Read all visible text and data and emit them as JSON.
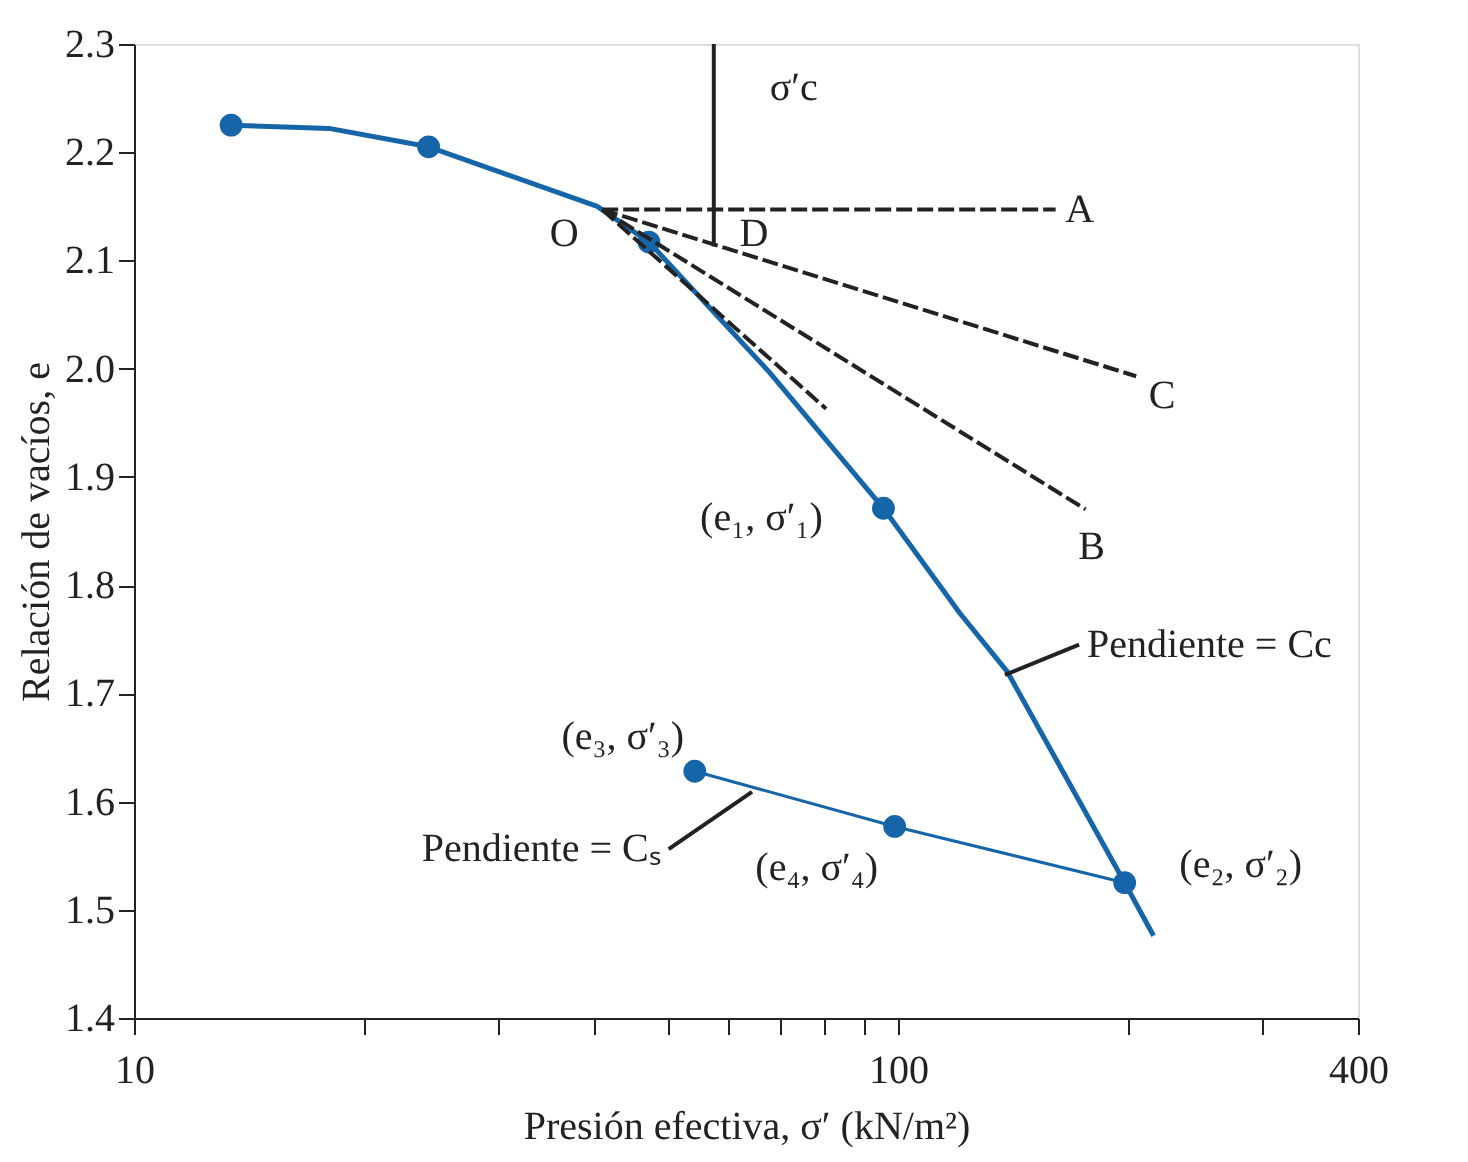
{
  "chart_data": {
    "type": "line",
    "xlabel": "Presión efectiva, σ′ (kN/m²)",
    "ylabel": "Relación de vacíos, e",
    "log": "x",
    "grid": false,
    "xlim": [
      10,
      400
    ],
    "xticks": [
      10,
      {
        "value": 20,
        "label": null
      },
      {
        "value": 30,
        "label": null
      },
      {
        "value": 40,
        "label": null
      },
      {
        "value": 50,
        "label": null
      },
      {
        "value": 60,
        "label": null
      },
      {
        "value": 70,
        "label": null
      },
      {
        "value": 80,
        "label": null
      },
      {
        "value": 90,
        "label": null
      },
      100,
      {
        "value": 200,
        "label": null
      },
      {
        "value": 300,
        "label": null
      },
      400
    ],
    "ylim": [
      1.4,
      2.3
    ],
    "yticks": [
      1.4,
      1.5,
      1.6,
      1.7,
      1.8,
      1.9,
      {
        "value": 2.0,
        "label": "2.0"
      },
      2.1,
      2.2,
      2.3
    ],
    "series": [
      {
        "color": "#1565a8",
        "x": [
          13.4,
          18.0,
          24.3,
          40.4,
          47.2,
          67.8,
          95.7,
          120.5,
          139,
          198,
          216
        ],
        "values": [
          2.225,
          2.222,
          2.205,
          2.15,
          2.117,
          1.997,
          1.871,
          1.774,
          1.72,
          1.525,
          1.476
        ]
      },
      {
        "color": "#1565a8",
        "x": [
          54.2,
          99,
          198
        ],
        "values": [
          1.628,
          1.577,
          1.525
        ]
      },
      {
        "type": "scatter",
        "color": "#1565a8",
        "marker": "circle",
        "x": [
          13.4,
          24.3,
          47.2,
          95.7,
          198,
          54.2,
          99
        ],
        "values": [
          2.225,
          2.205,
          2.117,
          1.871,
          1.525,
          1.628,
          1.577
        ]
      },
      {
        "color": "#222222",
        "line_style": "dashed",
        "x": [
          41,
          160.8
        ],
        "values": [
          2.147,
          2.147
        ]
      },
      {
        "color": "#222222",
        "line_style": "dashed",
        "x": [
          41,
          176
        ],
        "values": [
          2.147,
          1.87
        ]
      },
      {
        "color": "#222222",
        "line_style": "dashed",
        "x": [
          41,
          205
        ],
        "values": [
          2.147,
          1.993
        ]
      },
      {
        "color": "#222222",
        "line_style": "dashed",
        "x": [
          41,
          80.5
        ],
        "values": [
          2.147,
          1.963
        ]
      },
      {
        "color": "#222222",
        "x": [
          57.4,
          57.4
        ],
        "values": [
          2.3,
          2.113
        ]
      },
      {
        "color": "#222222",
        "x": [
          172.6,
          138
        ],
        "values": [
          1.745,
          1.717
        ]
      },
      {
        "color": "#222222",
        "x": [
          50.1,
          64.4
        ],
        "values": [
          1.556,
          1.609
        ]
      }
    ],
    "annotations": [
      {
        "text": "σ′c",
        "x": 57.4,
        "y": 2.3
      },
      {
        "text": "O",
        "x": 41,
        "y": 2.147
      },
      {
        "text": "D",
        "x": 57.4,
        "y": 2.113
      },
      {
        "text": "A",
        "x": 160.8,
        "y": 2.147
      },
      {
        "text": "C",
        "x": 205,
        "y": 1.993
      },
      {
        "text": "B",
        "x": 176,
        "y": 1.87
      },
      {
        "text": "(e₁, σ′₁)",
        "x": 95.7,
        "y": 1.871
      },
      {
        "text": "(e₃, σ′₃)",
        "x": 54.2,
        "y": 1.628
      },
      {
        "text": "(e₄, σ′₄)",
        "x": 99,
        "y": 1.577
      },
      {
        "text": "(e₂, σ′₂)",
        "x": 198,
        "y": 1.525
      },
      {
        "text": "Pendiente = Cc",
        "x": 172.6,
        "y": 1.745
      },
      {
        "text": "Pendiente = Cₛ",
        "x": 50.1,
        "y": 1.556
      }
    ]
  }
}
